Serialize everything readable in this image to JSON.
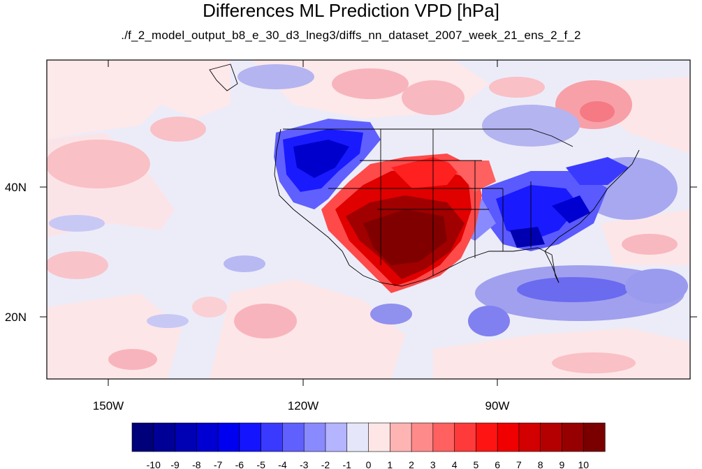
{
  "title": "Differences ML Prediction VPD [hPa]",
  "subtitle": "./f_2_model_output_b8_e_30_d3_lneg3/diffs_nn_dataset_2007_week_21_ens_2_f_2",
  "axes": {
    "lon_labels": [
      "150W",
      "120W",
      "90W"
    ],
    "lat_labels": [
      "40N",
      "20N"
    ]
  },
  "colorbar": {
    "labels": [
      "-10",
      "-9",
      "-8",
      "-7",
      "-6",
      "-5",
      "-4",
      "-3",
      "-2",
      "-1",
      "0",
      "1",
      "2",
      "3",
      "4",
      "5",
      "6",
      "7",
      "8",
      "9",
      "10"
    ],
    "colors": [
      "#00007a",
      "#000096",
      "#0000b4",
      "#0000d2",
      "#0000f0",
      "#1414ff",
      "#3a3aff",
      "#6060ff",
      "#8a8aff",
      "#b4b4ff",
      "#e6e6fa",
      "#ffe6e6",
      "#ffb4b4",
      "#ff8a8a",
      "#ff6060",
      "#ff3a3a",
      "#ff1414",
      "#f00000",
      "#d20000",
      "#b40000",
      "#960000",
      "#7a0000"
    ]
  },
  "colors": {
    "background": "#e8e8f8",
    "strong_blue": "#0000e0",
    "strong_red": "#9a0000"
  }
}
